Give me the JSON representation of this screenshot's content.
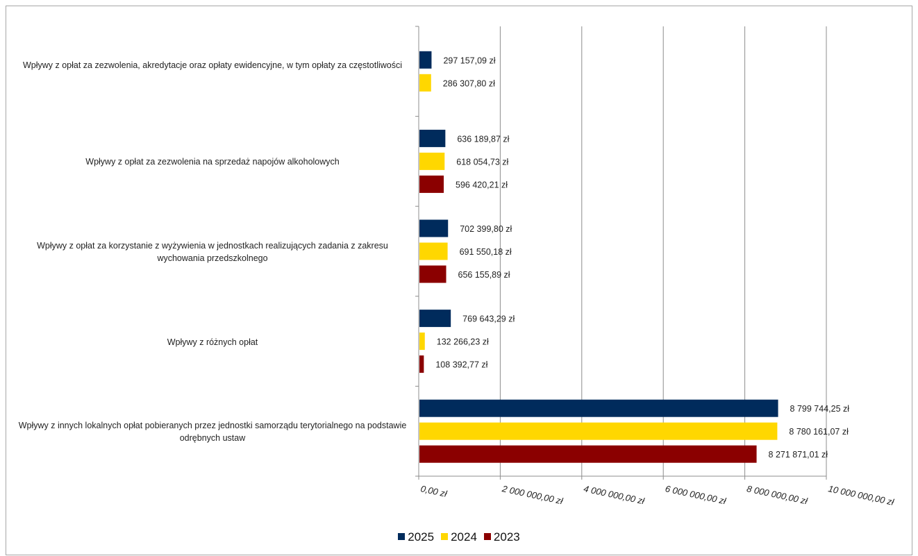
{
  "chart_data": {
    "type": "bar",
    "orientation": "horizontal",
    "categories": [
      "Wpływy z opłat za zezwolenia, akredytacje oraz opłaty ewidencyjne, w tym opłaty za częstotliwości",
      "Wpływy z opłat za zezwolenia na sprzedaż napojów alkoholowych",
      "Wpływy z opłat za korzystanie z wyżywienia w jednostkach realizujących zadania z zakresu wychowania przedszkolnego",
      "Wpływy z różnych opłat",
      "Wpływy z innych lokalnych opłat pobieranych przez jednostki samorządu terytorialnego na podstawie odrębnych ustaw"
    ],
    "series": [
      {
        "name": "2025",
        "color": "#002b5c",
        "values": [
          297157.09,
          636189.87,
          702399.8,
          769643.29,
          8799744.25
        ],
        "labels": [
          "297 157,09  zł",
          "636 189,87  zł",
          "702 399,80  zł",
          "769 643,29  zł",
          "8 799 744,25  zł"
        ]
      },
      {
        "name": "2024",
        "color": "#ffd700",
        "values": [
          286307.8,
          618054.73,
          691550.18,
          132266.23,
          8780161.07
        ],
        "labels": [
          "286 307,80  zł",
          "618 054,73  zł",
          "691 550,18  zł",
          "132 266,23  zł",
          "8 780 161,07  zł"
        ]
      },
      {
        "name": "2023",
        "color": "#8b0000",
        "values": [
          null,
          596420.21,
          656155.89,
          108392.77,
          8271871.01
        ],
        "labels": [
          null,
          "596 420,21  zł",
          "656 155,89  zł",
          "108 392,77  zł",
          "8 271 871,01  zł"
        ]
      }
    ],
    "xlim": [
      0,
      10000000
    ],
    "x_ticks": [
      0,
      2000000,
      4000000,
      6000000,
      8000000,
      10000000
    ],
    "x_tick_labels": [
      "0,00 zł",
      "2 000 000,00 zł",
      "4 000 000,00 zł",
      "6 000 000,00 zł",
      "8 000 000,00 zł",
      "10 000 000,00 zł"
    ],
    "grid": "vertical",
    "legend_position": "bottom"
  }
}
